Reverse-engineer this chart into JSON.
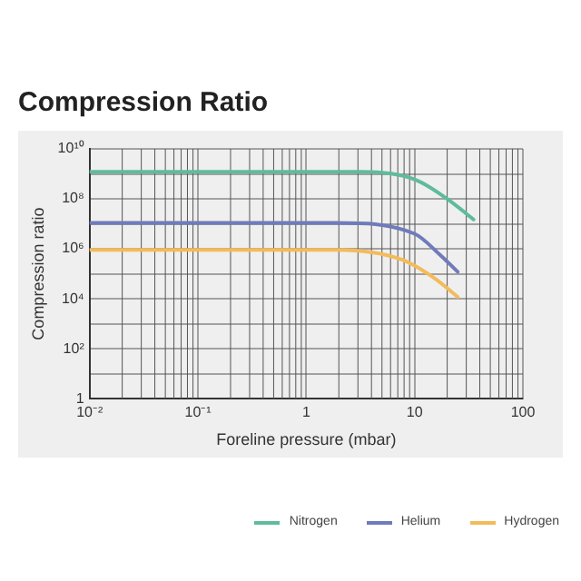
{
  "chart_data": {
    "type": "line",
    "title": "Compression Ratio",
    "xlabel": "Foreline pressure (mbar)",
    "ylabel": "Compression ratio",
    "log": "xy",
    "grid": true,
    "legend": "bottom right",
    "marker": "none",
    "xlim": [
      0.01,
      100
    ],
    "xticks": [
      {
        "value": 0.01,
        "label": "10⁻²"
      },
      {
        "value": 0.1,
        "label": "10⁻¹"
      },
      1,
      10,
      100
    ],
    "ylim": [
      1,
      10000000000
    ],
    "yticks": [
      1,
      {
        "value": 10,
        "label": null
      },
      {
        "value": 100,
        "label": "10²"
      },
      {
        "value": 1000,
        "label": null
      },
      {
        "value": 10000,
        "label": "10⁴"
      },
      {
        "value": 100000,
        "label": null
      },
      {
        "value": 1000000,
        "label": "10⁶"
      },
      {
        "value": 10000000,
        "label": null
      },
      {
        "value": 100000000,
        "label": "10⁸"
      },
      {
        "value": 1000000000,
        "label": null
      },
      {
        "value": 10000000000,
        "label": "10¹⁰"
      }
    ],
    "series": [
      {
        "name": "Nitrogen",
        "color": "#5fbb9c",
        "x": [
          0.01,
          1,
          3.3,
          10,
          20,
          35
        ],
        "values": [
          1200000000,
          1200000000,
          1200000000,
          600000000,
          100000000,
          15000000
        ]
      },
      {
        "name": "Helium",
        "color": "#6f7bbb",
        "x": [
          0.01,
          1,
          1.9,
          10,
          17,
          25
        ],
        "values": [
          11000000,
          11000000,
          11000000,
          4000000,
          600000,
          120000
        ]
      },
      {
        "name": "Hydrogen",
        "color": "#f2bb5c",
        "x": [
          0.01,
          1,
          1.9,
          7.6,
          15,
          25
        ],
        "values": [
          900000,
          900000,
          900000,
          370000,
          70000,
          12000
        ]
      }
    ]
  }
}
